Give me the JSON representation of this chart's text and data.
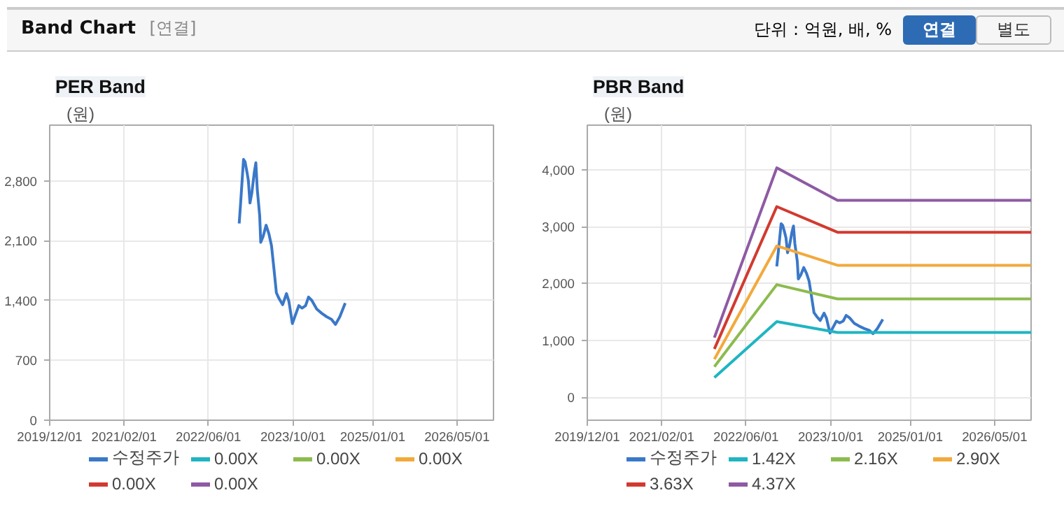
{
  "chart_data": [
    {
      "type": "line",
      "title": "PER Band",
      "ylabel": "(원)",
      "annotations": [
        "Band Chart",
        "[연결]",
        "단위 : 억원, 배, %",
        "연결",
        "별도"
      ],
      "xlim": [
        "2019-12-01",
        "2026-11-27"
      ],
      "xticks": [
        {
          "value": "2019-12-01",
          "label": "2019/12/01"
        },
        {
          "value": "2021-02-01",
          "label": "2021/02/01"
        },
        {
          "value": "2022-06-01",
          "label": "2022/06/01"
        },
        {
          "value": "2023-10-01",
          "label": "2023/10/01"
        },
        {
          "value": "2025-01-01",
          "label": "2025/01/01"
        },
        {
          "value": "2026-05-01",
          "label": "2026/05/01"
        }
      ],
      "ylim": [
        0,
        3450
      ],
      "yticks": [
        0,
        {
          "value": 700,
          "label": "700"
        },
        {
          "value": 1400,
          "label": "1,400"
        },
        {
          "value": 2100,
          "label": "2,100"
        },
        {
          "value": 2800,
          "label": "2,800"
        }
      ],
      "grid": true,
      "legend": "bottom",
      "marker": "none",
      "line_style": "solid",
      "series": [
        {
          "name": "수정주가",
          "color": "#3a78c9",
          "x": [
            "2022-11-25",
            "2022-12-04",
            "2022-12-20",
            "2022-12-29",
            "2023-01-09",
            "2023-01-17",
            "2023-01-26",
            "2023-02-06",
            "2023-02-20",
            "2023-03-01",
            "2023-03-09",
            "2023-03-23",
            "2023-03-29",
            "2023-04-12",
            "2023-04-29",
            "2023-05-15",
            "2023-05-30",
            "2023-06-13",
            "2023-06-27",
            "2023-07-13",
            "2023-08-02",
            "2023-08-24",
            "2023-09-07",
            "2023-09-27",
            "2023-10-11",
            "2023-11-03",
            "2023-11-22",
            "2023-12-12",
            "2023-12-29",
            "2024-01-17",
            "2024-02-14",
            "2024-03-14",
            "2024-04-11",
            "2024-05-09",
            "2024-06-01",
            "2024-06-26",
            "2024-07-27"
          ],
          "values": [
            2300,
            2560,
            3050,
            3020,
            2900,
            2800,
            2540,
            2660,
            2900,
            3010,
            2700,
            2390,
            2080,
            2150,
            2280,
            2180,
            2040,
            1770,
            1490,
            1420,
            1350,
            1480,
            1390,
            1130,
            1210,
            1340,
            1310,
            1340,
            1440,
            1400,
            1300,
            1250,
            1210,
            1180,
            1120,
            1210,
            1370
          ]
        },
        {
          "name": "0.00X",
          "color": "#1fb5c2"
        },
        {
          "name": "0.00X",
          "color": "#8cbb4e"
        },
        {
          "name": "0.00X",
          "color": "#f2a93b"
        },
        {
          "name": "0.00X",
          "color": "#d23a2f"
        },
        {
          "name": "0.00X",
          "color": "#8e5aa3"
        }
      ]
    },
    {
      "type": "line",
      "title": "PBR Band",
      "ylabel": "(원)",
      "xlim": [
        "2019-12-01",
        "2026-11-27"
      ],
      "xticks": [
        {
          "value": "2019-12-01",
          "label": "2019/12/01"
        },
        {
          "value": "2021-02-01",
          "label": "2021/02/01"
        },
        {
          "value": "2022-06-01",
          "label": "2022/06/01"
        },
        {
          "value": "2023-10-01",
          "label": "2023/10/01"
        },
        {
          "value": "2025-01-01",
          "label": "2025/01/01"
        },
        {
          "value": "2026-05-01",
          "label": "2026/05/01"
        }
      ],
      "ylim": [
        -400,
        4780
      ],
      "yticks": [
        0,
        {
          "value": 1000,
          "label": "1,000"
        },
        {
          "value": 2000,
          "label": "2,000"
        },
        {
          "value": 3000,
          "label": "3,000"
        },
        {
          "value": 4000,
          "label": "4,000"
        }
      ],
      "grid": true,
      "legend": "bottom",
      "marker": "none",
      "line_style": "solid",
      "series": [
        {
          "name": "수정주가",
          "color": "#3a78c9",
          "x": [
            "2022-11-25",
            "2022-12-04",
            "2022-12-20",
            "2022-12-29",
            "2023-01-09",
            "2023-01-17",
            "2023-01-26",
            "2023-02-06",
            "2023-02-20",
            "2023-03-01",
            "2023-03-09",
            "2023-03-23",
            "2023-03-29",
            "2023-04-12",
            "2023-04-29",
            "2023-05-15",
            "2023-05-30",
            "2023-06-13",
            "2023-06-27",
            "2023-07-13",
            "2023-08-02",
            "2023-08-24",
            "2023-09-07",
            "2023-09-27",
            "2023-10-11",
            "2023-11-03",
            "2023-11-22",
            "2023-12-12",
            "2023-12-29",
            "2024-01-17",
            "2024-02-14",
            "2024-03-14",
            "2024-04-11",
            "2024-05-09",
            "2024-06-01",
            "2024-06-26",
            "2024-07-27"
          ],
          "values": [
            2300,
            2560,
            3050,
            3020,
            2900,
            2800,
            2540,
            2660,
            2900,
            3010,
            2700,
            2390,
            2080,
            2150,
            2280,
            2180,
            2040,
            1770,
            1490,
            1420,
            1350,
            1480,
            1390,
            1130,
            1210,
            1340,
            1310,
            1340,
            1440,
            1400,
            1300,
            1250,
            1210,
            1180,
            1120,
            1210,
            1370
          ]
        },
        {
          "name": "1.42X",
          "color": "#1fb5c2",
          "x": [
            "2021-12-01",
            "2022-11-25",
            "2023-11-09",
            "2026-11-27"
          ],
          "values": [
            350,
            1330,
            1140,
            1140
          ]
        },
        {
          "name": "2.16X",
          "color": "#8cbb4e",
          "x": [
            "2021-12-01",
            "2022-11-25",
            "2023-11-09",
            "2026-11-27"
          ],
          "values": [
            540,
            1980,
            1730,
            1730
          ]
        },
        {
          "name": "2.90X",
          "color": "#f2a93b",
          "x": [
            "2021-12-01",
            "2022-11-25",
            "2023-11-09",
            "2026-11-27"
          ],
          "values": [
            670,
            2660,
            2320,
            2320
          ]
        },
        {
          "name": "3.63X",
          "color": "#d23a2f",
          "x": [
            "2021-12-01",
            "2022-11-25",
            "2023-11-09",
            "2026-11-27"
          ],
          "values": [
            850,
            3350,
            2900,
            2900
          ]
        },
        {
          "name": "4.37X",
          "color": "#8e5aa3",
          "x": [
            "2021-12-01",
            "2022-11-25",
            "2023-11-09",
            "2026-11-27"
          ],
          "values": [
            1050,
            4030,
            3460,
            3460
          ]
        }
      ]
    }
  ]
}
